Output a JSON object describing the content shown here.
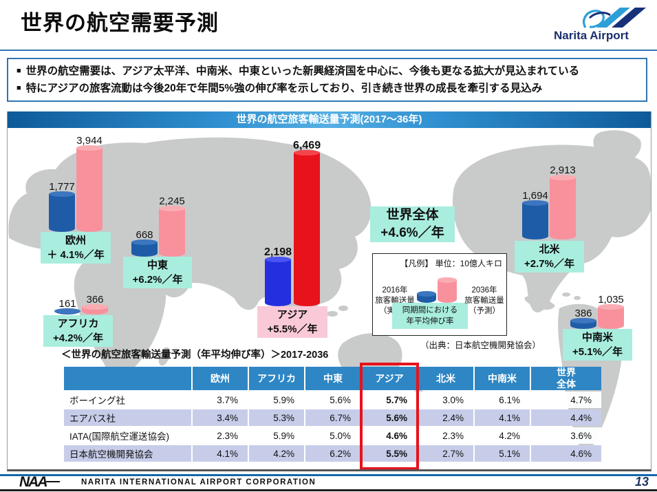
{
  "slide": {
    "title": "世界の航空需要予測",
    "page_number": "13",
    "footer": {
      "naa": "NAA",
      "company": "NARITA INTERNATIONAL AIRPORT CORPORATION"
    },
    "logo": {
      "text": "Narita Airport"
    }
  },
  "bullets": {
    "marker": "■",
    "b1": "世界の航空需要は、アジア太平洋、中南米、中東といった新興経済国を中心に、今後も更なる拡大が見込まれている",
    "b2": "特にアジアの旅客流動は今後20年で年間5%強の伸び率を示しており、引き続き世界の成長を牽引する見込み"
  },
  "banner": {
    "title": "世界の航空旅客輸送量予測(2017〜36年)"
  },
  "map_chart": {
    "world_total": {
      "name": "世界全体",
      "rate": "+4.6%／年"
    },
    "legend": {
      "title": "【凡例】 単位：10億人キロ",
      "left1": "2016年",
      "left2": "旅客輸送量",
      "left3": "（実績）",
      "right1": "2036年",
      "right2": "旅客輸送量",
      "right3": "（予測）",
      "center1": "同期間における",
      "center2": "年平均伸び率",
      "source": "（出典：日本航空機開発協会）"
    },
    "colors": {
      "c2016": "#1E5CA8",
      "c2016_top": "#3B76BF",
      "c2036": "#F8919B",
      "c2036_top": "#FAACB3",
      "asia2016": "#2430DF",
      "asia2016_top": "#4A55F2",
      "asia2036": "#E8121B",
      "asia2036_top": "#F4444B",
      "label_bg": "#A9EDDF",
      "asia_label_bg": "#F9C9D8"
    },
    "regions": [
      {
        "name": "欧州",
        "rate": "＋ 4.1%／年",
        "v2016": 1777,
        "v2036": 3944,
        "v2016_label": "1,777",
        "v2036_label": "3,944"
      },
      {
        "name": "中東",
        "rate": "+6.2%／年",
        "v2016": 668,
        "v2036": 2245,
        "v2016_label": "668",
        "v2036_label": "2,245"
      },
      {
        "name": "アフリカ",
        "rate": "+4.2%／年",
        "v2016": 161,
        "v2036": 366,
        "v2016_label": "161",
        "v2036_label": "366"
      },
      {
        "name": "アジア",
        "rate": "+5.5%／年",
        "v2016": 2198,
        "v2036": 6469,
        "v2016_label": "2,198",
        "v2036_label": "6,469"
      },
      {
        "name": "北米",
        "rate": "+2.7%／年",
        "v2016": 1694,
        "v2036": 2913,
        "v2016_label": "1,694",
        "v2036_label": "2,913"
      },
      {
        "name": "中南米",
        "rate": "+5.1%／年",
        "v2016": 386,
        "v2036": 1035,
        "v2016_label": "386",
        "v2036_label": "1,035"
      }
    ]
  },
  "table": {
    "title": "＜世界の航空旅客輸送量予測（年平均伸び率）＞2017-2036",
    "headers": [
      "",
      "欧州",
      "アフリカ",
      "中東",
      "アジア",
      "北米",
      "中南米",
      "世界全体"
    ],
    "rows": [
      {
        "org": "ボーイング社",
        "cells": [
          "3.7%",
          "5.9%",
          "5.6%",
          "5.7%",
          "3.0%",
          "6.1%",
          "4.7%"
        ]
      },
      {
        "org": "エアバス社",
        "cells": [
          "3.4%",
          "5.3%",
          "6.7%",
          "5.6%",
          "2.4%",
          "4.1%",
          "4.4%"
        ]
      },
      {
        "org": "IATA(国際航空運送協会)",
        "cells": [
          "2.3%",
          "5.9%",
          "5.0%",
          "4.6%",
          "2.3%",
          "4.2%",
          "3.6%"
        ]
      },
      {
        "org": "日本航空機開発協会",
        "cells": [
          "4.1%",
          "4.2%",
          "6.2%",
          "5.5%",
          "2.7%",
          "5.1%",
          "4.6%"
        ]
      }
    ]
  },
  "chart_data": [
    {
      "type": "bar",
      "title": "世界の航空旅客輸送量予測(2017〜36年)",
      "unit": "10億人キロ",
      "categories": [
        "欧州",
        "中東",
        "アフリカ",
        "アジア",
        "北米",
        "中南米"
      ],
      "series": [
        {
          "name": "2016年旅客輸送量（実績）",
          "values": [
            1777,
            668,
            161,
            2198,
            1694,
            386
          ]
        },
        {
          "name": "2036年旅客輸送量（予測）",
          "values": [
            3944,
            2245,
            366,
            6469,
            2913,
            1035
          ]
        }
      ],
      "growth_rates_per_year": {
        "欧州": "+4.1%",
        "中東": "+6.2%",
        "アフリカ": "+4.2%",
        "アジア": "+5.5%",
        "北米": "+2.7%",
        "中南米": "+5.1%",
        "世界全体": "+4.6%"
      },
      "source": "日本航空機開発協会",
      "legend_position": "center-right-box"
    },
    {
      "type": "table",
      "title": "＜世界の航空旅客輸送量予測（年平均伸び率）＞2017-2036",
      "columns": [
        "",
        "欧州",
        "アフリカ",
        "中東",
        "アジア",
        "北米",
        "中南米",
        "世界全体"
      ],
      "rows": [
        [
          "ボーイング社",
          "3.7%",
          "5.9%",
          "5.6%",
          "5.7%",
          "3.0%",
          "6.1%",
          "4.7%"
        ],
        [
          "エアバス社",
          "3.4%",
          "5.3%",
          "6.7%",
          "5.6%",
          "2.4%",
          "4.1%",
          "4.4%"
        ],
        [
          "IATA(国際航空運送協会)",
          "2.3%",
          "5.9%",
          "5.0%",
          "4.6%",
          "2.3%",
          "4.2%",
          "3.6%"
        ],
        [
          "日本航空機開発協会",
          "4.1%",
          "4.2%",
          "6.2%",
          "5.5%",
          "2.7%",
          "5.1%",
          "4.6%"
        ]
      ],
      "highlighted_column": "アジア"
    }
  ]
}
